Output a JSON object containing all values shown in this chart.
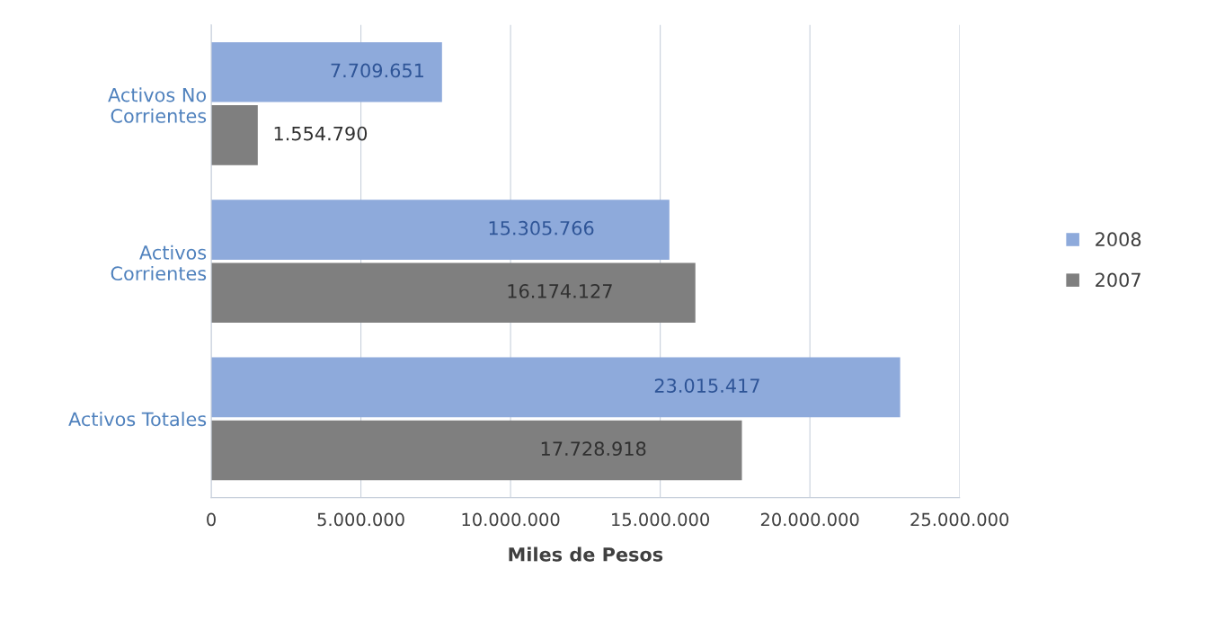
{
  "chart_data": {
    "type": "bar",
    "orientation": "horizontal",
    "xlabel": "Miles de Pesos",
    "categories": [
      "Activos No\nCorrientes",
      "Activos\nCorrientes",
      "Activos Totales"
    ],
    "series": [
      {
        "name": "2008",
        "color": "#8eaadb",
        "values": [
          7709651,
          15305766,
          23015417
        ],
        "value_labels": [
          "7.709.651",
          "15.305.766",
          "23.015.417"
        ]
      },
      {
        "name": "2007",
        "color": "#7f7f7f",
        "values": [
          1554790,
          16174127,
          17728918
        ],
        "value_labels": [
          "1.554.790",
          "16.174.127",
          "17.728.918"
        ]
      }
    ],
    "xlim": [
      0,
      25000000
    ],
    "xticks": [
      0,
      {
        "value": 5000000,
        "label": "5.000.000"
      },
      {
        "value": 10000000,
        "label": "10.000.000"
      },
      {
        "value": 15000000,
        "label": "15.000.000"
      },
      {
        "value": 20000000,
        "label": "20.000.000"
      },
      {
        "value": 25000000,
        "label": "25.000.000"
      }
    ],
    "grid": "x",
    "legend": "right"
  }
}
